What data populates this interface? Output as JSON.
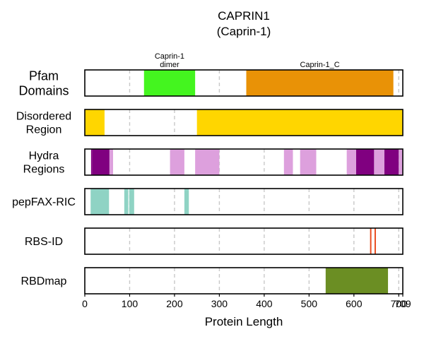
{
  "chart_data": {
    "type": "track-plot",
    "title_line1": "CAPRIN1",
    "title_line2": "(Caprin-1)",
    "xlabel": "Protein Length",
    "xlim": [
      0,
      709
    ],
    "xticks": [
      0,
      100,
      200,
      300,
      400,
      500,
      600,
      700,
      709
    ],
    "gridlines": [
      100,
      200,
      300,
      400,
      500,
      600,
      700
    ],
    "grid": true,
    "tracks": [
      {
        "name": "pfam",
        "label_lines": [
          "Pfam",
          "Domains"
        ],
        "segments": [
          {
            "start": 132,
            "end": 246,
            "color": "#44f51f",
            "label_lines": [
              "Caprin-1",
              "dimer"
            ]
          },
          {
            "start": 360,
            "end": 688,
            "color": "#e99206",
            "label_lines": [
              "Caprin-1_C"
            ]
          }
        ]
      },
      {
        "name": "disordered",
        "label_lines": [
          "Disordered",
          "Region"
        ],
        "segments": [
          {
            "start": 0,
            "end": 44,
            "color": "#ffd600"
          },
          {
            "start": 250,
            "end": 709,
            "color": "#ffd600"
          }
        ]
      },
      {
        "name": "hydra",
        "label_lines": [
          "Hydra",
          "Regions"
        ],
        "segments": [
          {
            "start": 14,
            "end": 17,
            "color": "#800080"
          },
          {
            "start": 17,
            "end": 55,
            "color": "#800080"
          },
          {
            "start": 55,
            "end": 63,
            "color": "#dda0dd"
          },
          {
            "start": 190,
            "end": 222,
            "color": "#dda0dd"
          },
          {
            "start": 246,
            "end": 300,
            "color": "#dda0dd"
          },
          {
            "start": 444,
            "end": 464,
            "color": "#dda0dd"
          },
          {
            "start": 480,
            "end": 516,
            "color": "#dda0dd"
          },
          {
            "start": 584,
            "end": 605,
            "color": "#dda0dd"
          },
          {
            "start": 605,
            "end": 645,
            "color": "#800080"
          },
          {
            "start": 645,
            "end": 668,
            "color": "#dda0dd"
          },
          {
            "start": 668,
            "end": 700,
            "color": "#800080"
          },
          {
            "start": 700,
            "end": 709,
            "color": "#dda0dd"
          }
        ]
      },
      {
        "name": "pepfax",
        "label_lines": [
          "pepFAX-RIC"
        ],
        "segments": [
          {
            "start": 13,
            "end": 54,
            "color": "#8fd3c4"
          },
          {
            "start": 88,
            "end": 97,
            "color": "#8fd3c4"
          },
          {
            "start": 99,
            "end": 110,
            "color": "#8fd3c4"
          },
          {
            "start": 222,
            "end": 232,
            "color": "#8fd3c4"
          }
        ]
      },
      {
        "name": "rbsid",
        "label_lines": [
          "RBS-ID"
        ],
        "segments": [
          {
            "start": 636,
            "end": 639,
            "color": "#e8481a"
          },
          {
            "start": 646,
            "end": 649,
            "color": "#e8481a"
          }
        ]
      },
      {
        "name": "rbdmap",
        "label_lines": [
          "RBDmap"
        ],
        "segments": [
          {
            "start": 537,
            "end": 676,
            "color": "#6b8e23"
          }
        ]
      }
    ]
  }
}
